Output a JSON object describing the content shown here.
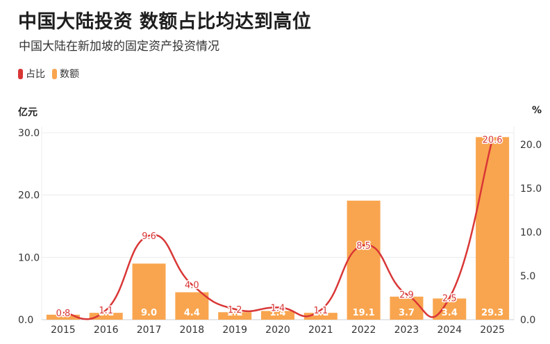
{
  "title": "中国大陆投资 数额占比均达到高位",
  "subtitle": "中国大陆在新加坡的固定资产投资情况",
  "legend": [
    {
      "label": "占比",
      "color": "#d93636"
    },
    {
      "label": "数额",
      "color": "#f9a54f"
    }
  ],
  "unit_left": "亿元",
  "unit_right": "%",
  "colors": {
    "bar": "#f9a54f",
    "line": "#d93636",
    "grid": "#ececec",
    "axis_text": "#333333"
  },
  "chart_data": {
    "type": "bar",
    "categories": [
      "2015",
      "2016",
      "2017",
      "2018",
      "2019",
      "2020",
      "2021",
      "2022",
      "2023",
      "2024",
      "2025"
    ],
    "series": [
      {
        "name": "数额",
        "type": "bar",
        "axis": "left",
        "values": [
          0.8,
          1.1,
          9.0,
          4.4,
          1.2,
          1.4,
          1.1,
          19.1,
          3.7,
          3.4,
          29.3
        ],
        "labels": [
          "0.8",
          "1.1",
          "9.0",
          "4.4",
          "1.2",
          "1.4",
          "1.1",
          "19.1",
          "3.7",
          "3.4",
          "29.3"
        ]
      },
      {
        "name": "占比",
        "type": "line",
        "axis": "right",
        "values": [
          0.8,
          1.1,
          9.6,
          4.0,
          1.2,
          1.4,
          1.1,
          8.5,
          2.9,
          2.5,
          20.6
        ],
        "labels": [
          "0.8",
          "1.1",
          "9.6",
          "4.0",
          "1.2",
          "1.4",
          "1.1",
          "8.5",
          "2.9",
          "2.5",
          "20.6"
        ]
      }
    ],
    "y_left": {
      "range": [
        0,
        30.0
      ],
      "ticks": [
        "0.0",
        "10.0",
        "20.0",
        "30.0"
      ]
    },
    "y_right": {
      "range": [
        0,
        21.5
      ],
      "ticks": [
        "0.0",
        "5.0",
        "10.0",
        "15.0",
        "20.0"
      ]
    },
    "grid": true,
    "legend_position": "top-left"
  }
}
